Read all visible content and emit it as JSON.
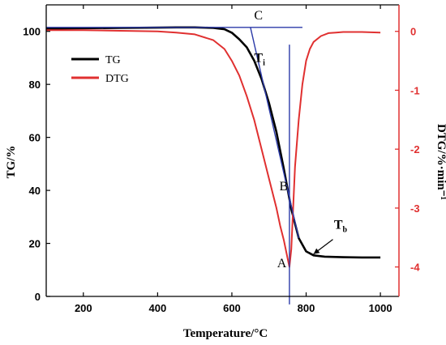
{
  "chart_data": {
    "type": "line",
    "title": "",
    "xlabel": "Temperature/°C",
    "ylabel_left": "TG/%",
    "ylabel_right": "DTG/%·min⁻¹",
    "xlim": [
      100,
      1050
    ],
    "ylim_left": [
      0,
      110
    ],
    "ylim_right": [
      -4.5,
      0.45
    ],
    "x_ticks": [
      200,
      400,
      600,
      800,
      1000
    ],
    "y_ticks_left": [
      0,
      20,
      40,
      60,
      80,
      100
    ],
    "y_ticks_right": [
      0,
      -1,
      -2,
      -3,
      -4
    ],
    "grid": false,
    "legend_position": "top-left",
    "colors": {
      "TG": "#000000",
      "DTG": "#e03030",
      "construction": "#2b3aa8"
    },
    "series": [
      {
        "name": "TG",
        "axis": "left",
        "x": [
          100,
          200,
          300,
          400,
          450,
          500,
          550,
          580,
          600,
          620,
          640,
          660,
          680,
          700,
          720,
          740,
          760,
          780,
          800,
          820,
          850,
          900,
          950,
          1000
        ],
        "y": [
          101,
          101.2,
          101.3,
          101.4,
          101.5,
          101.5,
          101.3,
          100.8,
          99.5,
          97,
          94,
          89,
          82,
          73,
          62,
          48,
          33,
          22,
          17,
          15.5,
          15,
          14.8,
          14.7,
          14.7
        ]
      },
      {
        "name": "DTG",
        "axis": "right",
        "x": [
          100,
          200,
          300,
          400,
          450,
          500,
          550,
          580,
          600,
          620,
          640,
          660,
          680,
          700,
          720,
          730,
          740,
          750,
          755,
          760,
          765,
          770,
          780,
          790,
          800,
          810,
          820,
          840,
          860,
          880,
          900,
          950,
          1000
        ],
        "y": [
          0.02,
          0.02,
          0.01,
          0.0,
          -0.02,
          -0.05,
          -0.15,
          -0.3,
          -0.5,
          -0.75,
          -1.1,
          -1.5,
          -2.0,
          -2.5,
          -3.0,
          -3.3,
          -3.55,
          -3.85,
          -4.0,
          -3.7,
          -3.0,
          -2.3,
          -1.5,
          -0.9,
          -0.5,
          -0.3,
          -0.18,
          -0.08,
          -0.03,
          -0.02,
          -0.01,
          -0.01,
          -0.02
        ]
      }
    ],
    "construction_lines": [
      {
        "name": "baseline",
        "axis": "left",
        "x": [
          100,
          790
        ],
        "y": [
          101.5,
          101.5
        ]
      },
      {
        "name": "tangent",
        "axis": "left",
        "x": [
          650,
          780
        ],
        "y": [
          101.5,
          22
        ]
      },
      {
        "name": "peak-vertical",
        "axis": "left",
        "x": [
          755,
          755
        ],
        "y": [
          95,
          -3
        ]
      }
    ],
    "annotations": [
      {
        "text": "C",
        "x": 660,
        "y": 104.5
      },
      {
        "text": "T",
        "sub": "i",
        "x": 660,
        "y": 88.5
      },
      {
        "text": "B",
        "x": 728,
        "y": 40
      },
      {
        "text": "A",
        "x": 722,
        "y": 11
      },
      {
        "text": "T",
        "sub": "b",
        "x": 875,
        "y": 25.5
      }
    ],
    "markers": [
      {
        "name": "Tb-arrow",
        "from": [
          872,
          21.5
        ],
        "to": [
          820,
          16
        ]
      }
    ]
  }
}
